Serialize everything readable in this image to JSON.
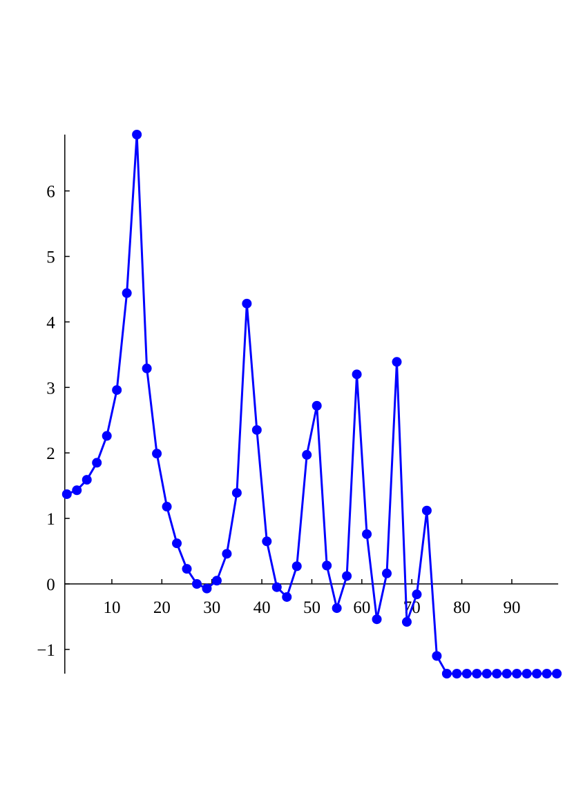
{
  "chart_data": {
    "type": "line",
    "x": [
      1,
      3,
      5,
      7,
      9,
      11,
      13,
      15,
      17,
      19,
      21,
      23,
      25,
      27,
      29,
      31,
      33,
      35,
      37,
      39,
      41,
      43,
      45,
      47,
      49,
      51,
      53,
      55,
      57,
      59,
      61,
      63,
      65,
      67,
      69,
      71,
      73,
      75,
      77,
      79,
      81,
      83,
      85,
      87,
      89,
      91,
      93,
      95,
      97,
      99
    ],
    "series": [
      {
        "color": "#0000ff",
        "values": [
          1.37,
          1.43,
          1.59,
          1.85,
          2.26,
          2.96,
          4.44,
          6.86,
          3.29,
          1.99,
          1.18,
          0.62,
          0.23,
          0.0,
          -0.07,
          0.05,
          0.46,
          1.39,
          4.28,
          2.35,
          0.65,
          -0.05,
          -0.2,
          0.27,
          1.97,
          2.72,
          0.28,
          -0.37,
          0.12,
          3.2,
          0.76,
          -0.54,
          0.16,
          3.39,
          -0.58,
          -0.16,
          1.12,
          -1.1,
          -1.37,
          -1.37,
          -1.37,
          -1.37,
          -1.37,
          -1.37,
          -1.37,
          -1.37,
          -1.37,
          -1.37,
          -1.37,
          -1.37
        ]
      }
    ],
    "xlim": [
      1,
      99
    ],
    "ylim": [
      -1.37,
      6.86
    ],
    "xticks": [
      10,
      20,
      30,
      40,
      50,
      60,
      70,
      80,
      90
    ],
    "yticks": [
      {
        "value": -1,
        "label": "−1"
      },
      0,
      1,
      2,
      3,
      4,
      5,
      6
    ],
    "markers": true
  }
}
